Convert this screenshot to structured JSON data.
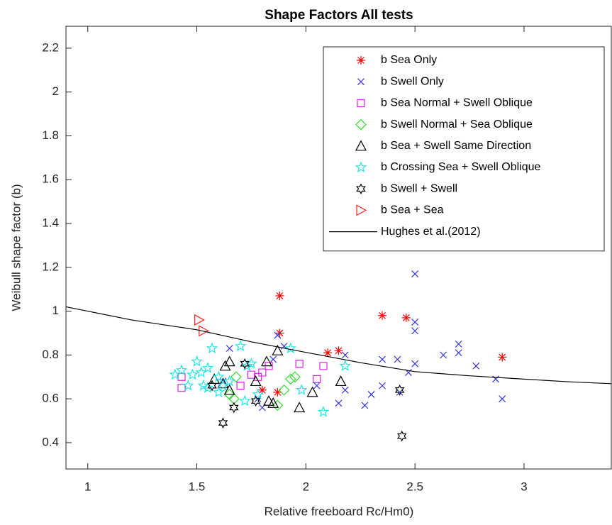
{
  "chart_data": {
    "type": "scatter",
    "title": "Shape Factors All tests",
    "x_label": "Relative freeboard Rc/Hm0)",
    "y_label": "Weibull shape factor (b)",
    "xlim": [
      0.9,
      3.4
    ],
    "ylim": [
      0.28,
      2.3
    ],
    "xticks": [
      1,
      1.5,
      2,
      2.5,
      3
    ],
    "yticks": [
      0.4,
      0.6,
      0.8,
      1,
      1.2,
      1.4,
      1.6,
      1.8,
      2,
      2.2
    ],
    "grid": false,
    "legend": "top-right",
    "series": [
      {
        "name": "b Sea Only",
        "color": "#ff0000",
        "marker": "asterisk",
        "x": [
          1.88,
          1.88,
          1.8,
          1.87,
          2.1,
          2.15,
          2.35,
          2.46,
          2.9
        ],
        "values": [
          1.07,
          0.9,
          0.64,
          0.63,
          0.81,
          0.82,
          0.98,
          0.97,
          0.79
        ]
      },
      {
        "name": "b Swell Only",
        "color": "#3333dd",
        "marker": "x",
        "x": [
          2.5,
          2.5,
          2.5,
          2.7,
          2.7,
          2.63,
          2.78,
          2.87,
          2.9,
          2.5,
          2.47,
          2.42,
          2.35,
          2.35,
          2.3,
          2.27,
          2.43,
          2.18,
          2.18,
          2.15,
          2.05,
          1.87,
          1.9,
          1.85,
          1.8,
          1.78,
          1.65,
          1.62
        ],
        "values": [
          1.17,
          0.95,
          0.91,
          0.85,
          0.81,
          0.8,
          0.75,
          0.69,
          0.6,
          0.76,
          0.72,
          0.78,
          0.78,
          0.66,
          0.62,
          0.57,
          0.63,
          0.64,
          0.8,
          0.58,
          0.66,
          0.89,
          0.84,
          0.78,
          0.56,
          0.6,
          0.83,
          0.68
        ]
      },
      {
        "name": "b Sea Normal + Swell Oblique",
        "color": "#e020e0",
        "marker": "square",
        "x": [
          1.43,
          1.43,
          1.7,
          1.75,
          1.78,
          1.8,
          1.97,
          2.08,
          2.05,
          1.83
        ],
        "values": [
          0.7,
          0.65,
          0.66,
          0.71,
          0.7,
          0.72,
          0.76,
          0.75,
          0.69,
          0.75
        ]
      },
      {
        "name": "b Swell Normal + Sea Oblique",
        "color": "#33dd33",
        "marker": "diamond",
        "x": [
          1.65,
          1.67,
          1.68,
          1.87,
          1.9,
          1.93,
          1.95
        ],
        "values": [
          0.62,
          0.6,
          0.7,
          0.57,
          0.64,
          0.69,
          0.7
        ]
      },
      {
        "name": "b Sea + Swell Same Direction",
        "color": "#000000",
        "marker": "triangle",
        "x": [
          1.63,
          1.65,
          1.58,
          1.62,
          1.65,
          1.77,
          1.82,
          1.87,
          1.83,
          1.85,
          1.97,
          2.03,
          2.16
        ],
        "values": [
          0.75,
          0.77,
          0.69,
          0.67,
          0.64,
          0.68,
          0.77,
          0.82,
          0.59,
          0.58,
          0.56,
          0.63,
          0.68
        ]
      },
      {
        "name": "b Crossing Sea + Swell Oblique",
        "color": "#22e5e5",
        "marker": "pentagram",
        "x": [
          1.4,
          1.43,
          1.46,
          1.48,
          1.5,
          1.52,
          1.55,
          1.57,
          1.55,
          1.6,
          1.62,
          1.65,
          1.7,
          1.73,
          1.75,
          1.78,
          1.72,
          1.93,
          1.98,
          2.08,
          2.18,
          1.53,
          1.6
        ],
        "values": [
          0.71,
          0.73,
          0.66,
          0.71,
          0.77,
          0.72,
          0.74,
          0.83,
          0.65,
          0.63,
          0.66,
          0.68,
          0.84,
          0.75,
          0.76,
          0.62,
          0.59,
          0.83,
          0.64,
          0.54,
          0.75,
          0.66,
          0.7
        ]
      },
      {
        "name": "b Swell + Swell",
        "color": "#000000",
        "marker": "hexagram",
        "x": [
          1.62,
          1.67,
          1.77,
          1.72,
          1.57,
          2.43,
          2.44
        ],
        "values": [
          0.49,
          0.56,
          0.59,
          0.76,
          0.66,
          0.64,
          0.43
        ]
      },
      {
        "name": "b Sea + Sea",
        "color": "#ff2222",
        "marker": "triangle-right",
        "x": [
          1.51,
          1.53
        ],
        "values": [
          0.96,
          0.91
        ]
      },
      {
        "name": "Hughes et al.(2012)",
        "color": "#000000",
        "marker": "line",
        "x": [
          0.9,
          1.2,
          1.5,
          1.75,
          2,
          2.25,
          2.5,
          2.75,
          3,
          3.2,
          3.4
        ],
        "values": [
          1.02,
          0.96,
          0.915,
          0.86,
          0.812,
          0.765,
          0.724,
          0.705,
          0.69,
          0.678,
          0.669
        ]
      }
    ]
  }
}
